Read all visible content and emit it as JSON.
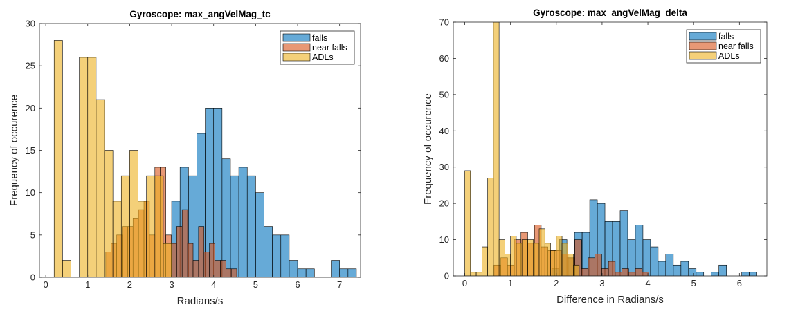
{
  "colors": {
    "falls": "#0072BD",
    "near_falls": "#D95319",
    "adls": "#EDB120",
    "bar_edge": "#000000",
    "axes": "#262626",
    "background": "#ffffff"
  },
  "chart_data": [
    {
      "type": "bar",
      "title": "Gyroscope: max_angVelMag_tc",
      "xlabel": "Radians/s",
      "ylabel": "Frequency of occurence",
      "xlim": [
        -0.15,
        7.5
      ],
      "ylim": [
        0,
        30
      ],
      "xticks": [
        0,
        1,
        2,
        3,
        4,
        5,
        6,
        7
      ],
      "yticks": [
        0,
        5,
        10,
        15,
        20,
        25,
        30
      ],
      "grid": false,
      "legend_position": "top-right",
      "series": [
        {
          "name": "falls",
          "color_key": "falls",
          "bin_width": 0.2,
          "bin_starts": [
            3.0,
            3.2,
            3.4,
            3.6,
            3.8,
            4.0,
            4.2,
            4.4,
            4.6,
            4.8,
            5.0,
            5.2,
            5.4,
            5.6,
            5.8,
            6.0,
            6.2,
            6.4,
            6.6,
            6.8,
            7.0,
            7.2
          ],
          "values": [
            9,
            13,
            12,
            17,
            20,
            20,
            14,
            12,
            13,
            12,
            10,
            6,
            5,
            5,
            2,
            1,
            1,
            0,
            0,
            2,
            1,
            1
          ]
        },
        {
          "name": "near falls",
          "color_key": "near_falls",
          "bin_width": 0.13,
          "bin_starts": [
            1.43,
            1.56,
            1.69,
            1.82,
            1.95,
            2.08,
            2.21,
            2.34,
            2.47,
            2.6,
            2.73,
            2.86,
            2.99,
            3.12,
            3.25,
            3.38,
            3.51,
            3.64,
            3.77,
            3.9,
            4.03,
            4.16,
            4.29,
            4.42
          ],
          "values": [
            3,
            4,
            5,
            6,
            6,
            7,
            8,
            9,
            5,
            13,
            13,
            5,
            4,
            6,
            8,
            4,
            2,
            6,
            3,
            4,
            2,
            2,
            1,
            1
          ]
        },
        {
          "name": "ADLs",
          "color_key": "adls",
          "bin_width": 0.2,
          "bin_starts": [
            0.2,
            0.4,
            0.6,
            0.8,
            1.0,
            1.2,
            1.4,
            1.6,
            1.8,
            2.0,
            2.2,
            2.4,
            2.6,
            2.8
          ],
          "values": [
            28,
            2,
            0,
            26,
            26,
            21,
            15,
            9,
            12,
            15,
            9,
            12,
            12,
            4
          ]
        }
      ],
      "legend": [
        "falls",
        "near falls",
        "ADLs"
      ]
    },
    {
      "type": "bar",
      "title": "Gyroscope: max_angVelMag_delta",
      "xlabel": "Difference in Radians/s",
      "ylabel": "Frequency of occurence",
      "xlim": [
        -0.25,
        6.6
      ],
      "ylim": [
        0,
        70
      ],
      "xticks": [
        0,
        1,
        2,
        3,
        4,
        5,
        6
      ],
      "yticks": [
        0,
        10,
        20,
        30,
        40,
        50,
        60,
        70
      ],
      "grid": false,
      "legend_position": "top-right",
      "series": [
        {
          "name": "falls",
          "color_key": "falls",
          "bin_width": 0.166,
          "bin_starts": [
            1.9,
            2.066,
            2.232,
            2.398,
            2.564,
            2.73,
            2.896,
            3.062,
            3.228,
            3.394,
            3.56,
            3.726,
            3.892,
            4.058,
            4.224,
            4.39,
            4.556,
            4.722,
            4.888,
            5.054,
            5.22,
            5.386,
            5.552,
            5.718,
            5.884,
            6.05,
            6.216
          ],
          "values": [
            2,
            10,
            5,
            12,
            12,
            21,
            20,
            15,
            15,
            18,
            10,
            14,
            10,
            8,
            4,
            6,
            3,
            4,
            2,
            1,
            0,
            1,
            3,
            0,
            0,
            1,
            1
          ]
        },
        {
          "name": "near falls",
          "color_key": "near_falls",
          "bin_width": 0.147,
          "bin_starts": [
            0.64,
            0.787,
            0.934,
            1.081,
            1.228,
            1.375,
            1.522,
            1.669,
            1.816,
            1.963,
            2.11,
            2.257,
            2.404,
            2.551,
            2.698,
            2.845,
            2.992,
            3.139,
            3.286,
            3.433,
            3.58,
            3.727,
            3.874
          ],
          "values": [
            3,
            5,
            3,
            10,
            12,
            9,
            14,
            8,
            7,
            7,
            6,
            5,
            10,
            2,
            5,
            6,
            2,
            4,
            1,
            2,
            1,
            2,
            1
          ]
        },
        {
          "name": "ADLs",
          "color_key": "adls",
          "bin_width": 0.125,
          "bin_starts": [
            0.0,
            0.125,
            0.25,
            0.375,
            0.5,
            0.625,
            0.75,
            0.875,
            1.0,
            1.125,
            1.25,
            1.375,
            1.5,
            1.625,
            1.75,
            1.875,
            2.0,
            2.125,
            2.25,
            2.375
          ],
          "values": [
            29,
            1,
            1,
            8,
            27,
            70,
            10,
            6,
            11,
            9,
            10,
            10,
            9,
            13,
            9,
            7,
            11,
            9,
            6,
            3
          ]
        }
      ],
      "legend": [
        "falls",
        "near falls",
        "ADLs"
      ]
    }
  ]
}
